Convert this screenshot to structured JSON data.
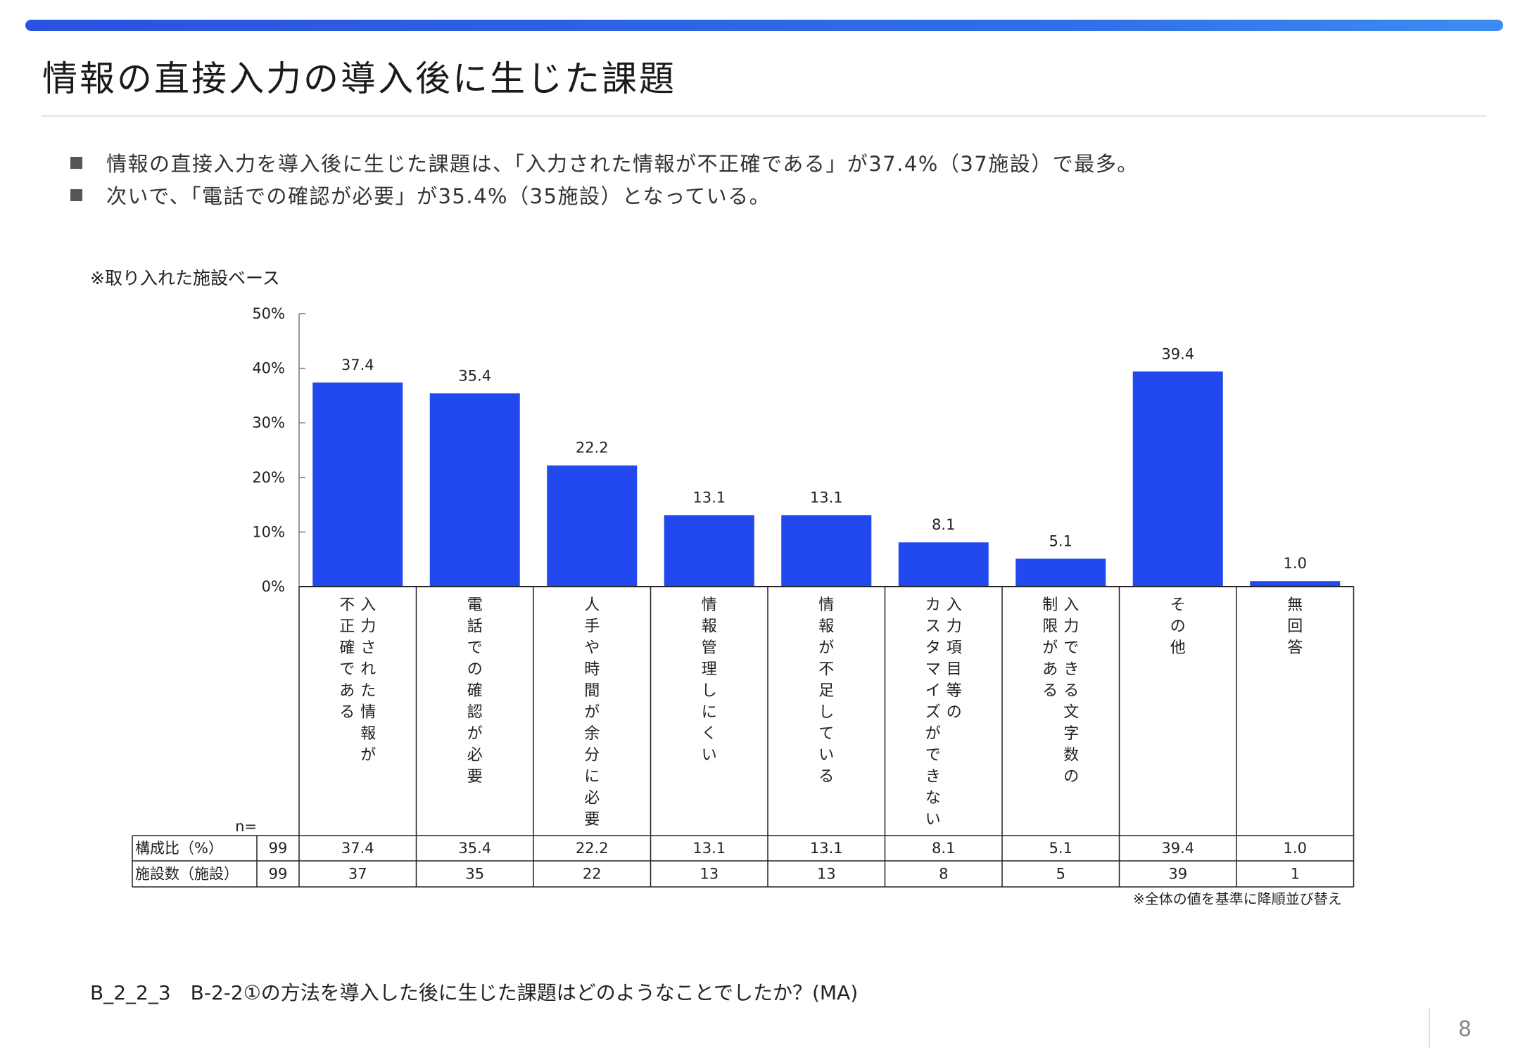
{
  "header": {
    "title": "情報の直接入力の導入後に生じた課題"
  },
  "summary": {
    "bullets": [
      "情報の直接入力を導入後に生じた課題は、「入力された情報が不正確である」が37.4%（37施設）で最多。",
      "次いで、「電話での確認が必要」が35.4%（35施設）となっている。"
    ]
  },
  "notes": {
    "base": "※取り入れた施設ベース",
    "sort": "※全体の値を基準に降順並び替え"
  },
  "chart_data": {
    "type": "bar",
    "categories": [
      "入力された情報が不正確である",
      "電話での確認が必要",
      "人手や時間が余分に必要",
      "情報管理しにくい",
      "情報が不足している",
      "入力項目等のカスタマイズができない",
      "入力できる文字数の制限がある",
      "その他",
      "無回答"
    ],
    "category_columns": [
      [
        "入力された情報が",
        "不正確である"
      ],
      [
        "電話での確認が必要"
      ],
      [
        "人手や時間が余分に必要"
      ],
      [
        "情報管理しにくい"
      ],
      [
        "情報が不足している"
      ],
      [
        "入力項目等の",
        "カスタマイズができない"
      ],
      [
        "入力できる文字数の",
        "制限がある"
      ],
      [
        "その他"
      ],
      [
        "無回答"
      ]
    ],
    "values": [
      37.4,
      35.4,
      22.2,
      13.1,
      13.1,
      8.1,
      5.1,
      39.4,
      1.0
    ],
    "value_labels": [
      "37.4",
      "35.4",
      "22.2",
      "13.1",
      "13.1",
      "8.1",
      "5.1",
      "39.4",
      "1.0"
    ],
    "ylim": [
      0,
      50
    ],
    "yticks": [
      "0%",
      "10%",
      "20%",
      "30%",
      "40%",
      "50%"
    ],
    "bar_color": "#2149ed",
    "grid": false
  },
  "table": {
    "n_label": "n=",
    "rows": [
      {
        "label": "構成比（%）",
        "n": "99",
        "values": [
          "37.4",
          "35.4",
          "22.2",
          "13.1",
          "13.1",
          "8.1",
          "5.1",
          "39.4",
          "1.0"
        ]
      },
      {
        "label": "施設数（施設）",
        "n": "99",
        "values": [
          "37",
          "35",
          "22",
          "13",
          "13",
          "8",
          "5",
          "39",
          "1"
        ]
      }
    ]
  },
  "footer": {
    "question": "B_2_2_3　B-2-2①の方法を導入した後に生じた課題はどのようなことでしたか？(MA)",
    "page_number": "8"
  }
}
